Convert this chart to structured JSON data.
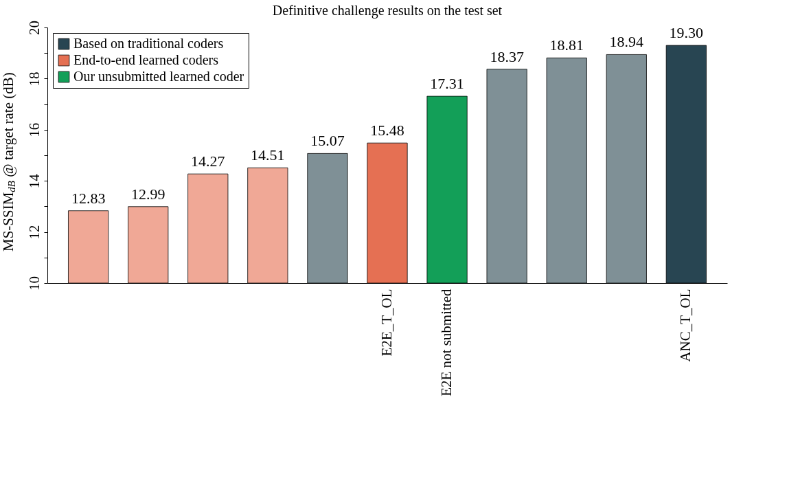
{
  "chart_data": {
    "type": "bar",
    "title": "Definitive challenge results on the test set",
    "ylabel": "MS-SSIM$_{dB}$ @ target rate (dB)",
    "categories": [
      null,
      null,
      null,
      null,
      null,
      "E2E_T_OL",
      "E2E not submitted",
      null,
      null,
      null,
      "ANC_T_OL"
    ],
    "series": [
      {
        "name": "Based on traditional coders",
        "color": "#284552",
        "colors": [
          null,
          null,
          null,
          null,
          "#7f9096",
          null,
          null,
          "#7f9096",
          "#7f9096",
          "#7f9096",
          "#284552"
        ],
        "values": [
          null,
          null,
          null,
          null,
          15.07,
          null,
          null,
          18.37,
          18.81,
          18.94,
          19.3
        ],
        "value_labels": [
          null,
          null,
          null,
          null,
          "15.07",
          null,
          null,
          "18.37",
          "18.81",
          "18.94",
          "19.30"
        ]
      },
      {
        "name": "End-to-end learned coders",
        "color": "#e57053",
        "colors": [
          "#f0a896",
          "#f0a896",
          "#f0a896",
          "#f0a896",
          null,
          "#e57053",
          null,
          null,
          null,
          null,
          null
        ],
        "values": [
          12.83,
          12.99,
          14.27,
          14.51,
          null,
          15.48,
          null,
          null,
          null,
          null,
          null
        ],
        "value_labels": [
          "12.83",
          "12.99",
          "14.27",
          "14.51",
          null,
          "15.48",
          null,
          null,
          null,
          null,
          null
        ]
      },
      {
        "name": "Our unsubmitted learned coder",
        "color": "#139f58",
        "colors": [
          null,
          null,
          null,
          null,
          null,
          null,
          "#139f58",
          null,
          null,
          null,
          null
        ],
        "values": [
          null,
          null,
          null,
          null,
          null,
          null,
          17.31,
          null,
          null,
          null,
          null
        ],
        "value_labels": [
          null,
          null,
          null,
          null,
          null,
          null,
          "17.31",
          null,
          null,
          null,
          null
        ]
      }
    ],
    "ylim": [
      10,
      20
    ],
    "yticks": [
      10,
      {
        "value": 11,
        "label": null
      },
      12,
      {
        "value": 13,
        "label": null
      },
      14,
      {
        "value": 15,
        "label": null
      },
      16,
      {
        "value": 17,
        "label": null
      },
      18,
      {
        "value": 19,
        "label": null
      },
      20
    ],
    "grid": false,
    "legend": "top left"
  }
}
